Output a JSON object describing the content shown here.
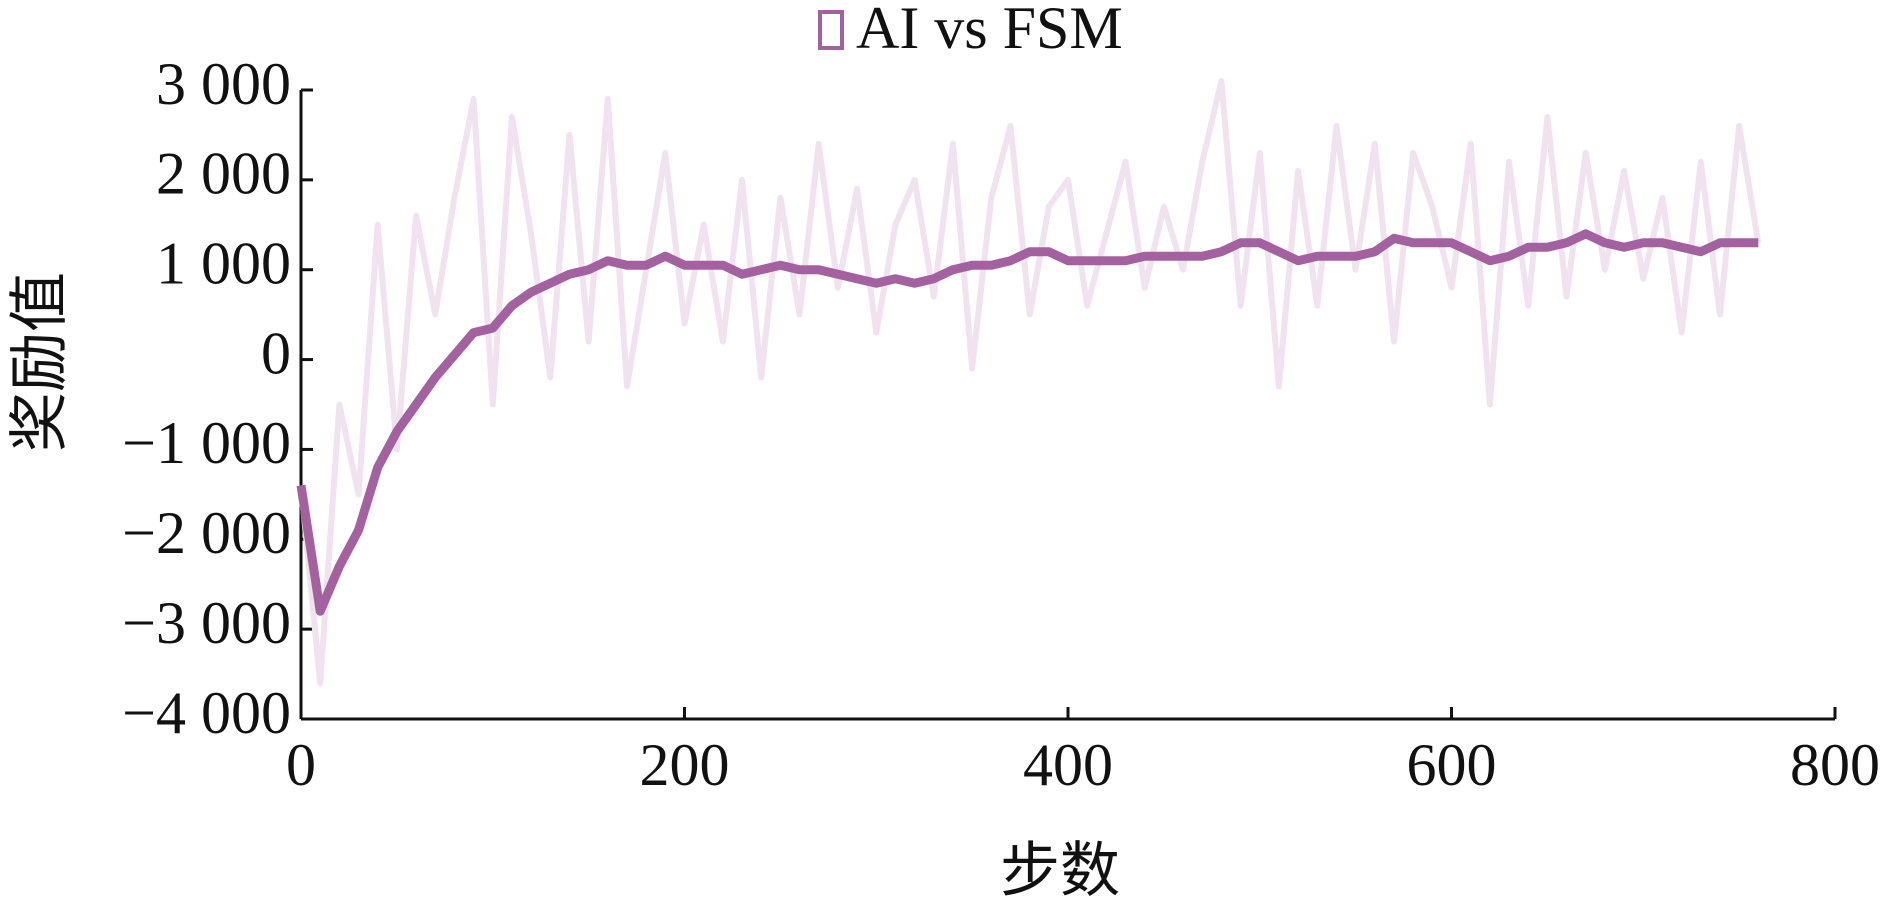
{
  "chart_data": {
    "type": "line",
    "x_label": "步数",
    "y_label": "奖励值",
    "x": [
      0,
      10,
      20,
      30,
      40,
      50,
      60,
      70,
      80,
      90,
      100,
      110,
      120,
      130,
      140,
      150,
      160,
      170,
      180,
      190,
      200,
      210,
      220,
      230,
      240,
      250,
      260,
      270,
      280,
      290,
      300,
      310,
      320,
      330,
      340,
      350,
      360,
      370,
      380,
      390,
      400,
      410,
      420,
      430,
      440,
      450,
      460,
      470,
      480,
      490,
      500,
      510,
      520,
      530,
      540,
      550,
      560,
      570,
      580,
      590,
      600,
      610,
      620,
      630,
      640,
      650,
      660,
      670,
      680,
      690,
      700,
      710,
      720,
      730,
      740,
      750,
      760
    ],
    "series": [
      {
        "color": "#f1e2ef",
        "values": [
          -1400,
          -3600,
          -500,
          -1500,
          1500,
          -1000,
          1600,
          500,
          1800,
          2900,
          -500,
          2700,
          1400,
          -200,
          2500,
          200,
          2900,
          -300,
          1000,
          2300,
          400,
          1500,
          200,
          2000,
          -200,
          1800,
          500,
          2400,
          800,
          1900,
          300,
          1500,
          2000,
          700,
          2400,
          -100,
          1800,
          2600,
          500,
          1700,
          2000,
          600,
          1400,
          2200,
          800,
          1700,
          1000,
          2200,
          3100,
          600,
          2300,
          -300,
          2100,
          600,
          2600,
          1000,
          2400,
          200,
          2300,
          1700,
          800,
          2400,
          -500,
          2200,
          600,
          2700,
          700,
          2300,
          1000,
          2100,
          900,
          1800,
          300,
          2200,
          500,
          2600,
          1300
        ]
      },
      {
        "name": "AI vs FSM",
        "color": "#a3629f",
        "values": [
          -1400,
          -2800,
          -2300,
          -1900,
          -1200,
          -800,
          -500,
          -200,
          50,
          300,
          350,
          600,
          750,
          850,
          950,
          1000,
          1100,
          1050,
          1050,
          1150,
          1050,
          1050,
          1050,
          950,
          1000,
          1050,
          1000,
          1000,
          950,
          900,
          850,
          900,
          850,
          900,
          1000,
          1050,
          1050,
          1100,
          1200,
          1200,
          1100,
          1100,
          1100,
          1100,
          1150,
          1150,
          1150,
          1150,
          1200,
          1300,
          1300,
          1200,
          1100,
          1150,
          1150,
          1150,
          1200,
          1350,
          1300,
          1300,
          1300,
          1200,
          1100,
          1150,
          1250,
          1250,
          1300,
          1400,
          1300,
          1250,
          1300,
          1300,
          1250,
          1200,
          1300,
          1300,
          1300
        ]
      }
    ],
    "xlim": [
      0,
      800
    ],
    "xticks": [
      0,
      200,
      400,
      600,
      800
    ],
    "ylim": [
      -4000,
      3000
    ],
    "yticks": [
      {
        "value": -4000,
        "label": "−4 000"
      },
      {
        "value": -3000,
        "label": "−3 000"
      },
      {
        "value": -2000,
        "label": "−2 000"
      },
      {
        "value": -1000,
        "label": "−1 000"
      },
      0,
      {
        "value": 1000,
        "label": "1 000"
      },
      {
        "value": 2000,
        "label": "2 000"
      },
      {
        "value": 3000,
        "label": "3 000"
      }
    ],
    "grid": false
  }
}
